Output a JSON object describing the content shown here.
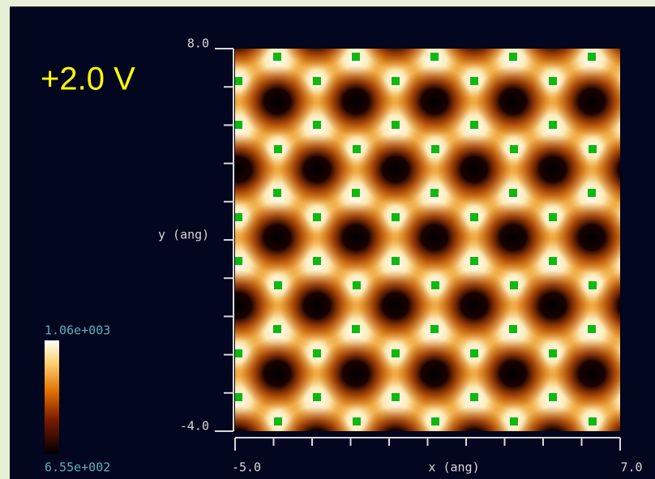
{
  "chart_data": {
    "type": "heatmap",
    "annotation": "+2.0 V",
    "xlabel": "x (ang)",
    "ylabel": "y (ang)",
    "xlim": [
      -5,
      7
    ],
    "ylim": [
      -4,
      8
    ],
    "xticks": [
      {
        "value": -5,
        "label": "-5.0"
      },
      {
        "value": 7,
        "label": "7.0"
      }
    ],
    "yticks": [
      {
        "value": -4,
        "label": "-4.0"
      },
      {
        "value": 8,
        "label": "8.0"
      }
    ],
    "colorbar": {
      "range": [
        655,
        1060
      ],
      "ticks": [
        {
          "value": 655,
          "label": "6.55e+002"
        },
        {
          "value": 1060,
          "label": "1.06e+003"
        }
      ]
    }
  }
}
